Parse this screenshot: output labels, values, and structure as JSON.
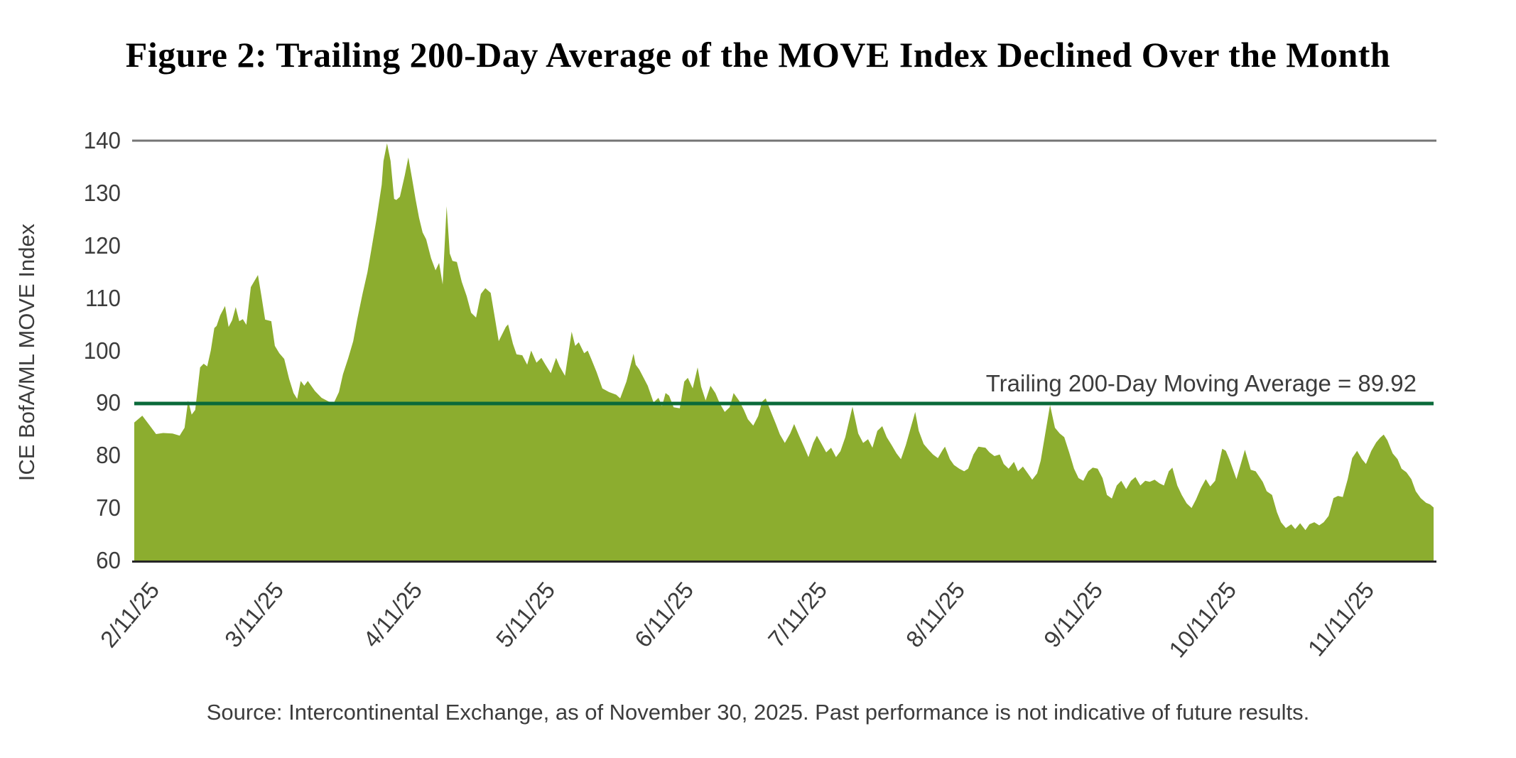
{
  "chart_data": {
    "type": "area",
    "title": "Figure 2: Trailing 200-Day Average of the MOVE Index Declined Over the Month",
    "ylabel": "ICE BofA/ML MOVE Index",
    "xlabel": "",
    "ylim": [
      60,
      140
    ],
    "y_ticks": [
      60,
      70,
      80,
      90,
      100,
      110,
      120,
      130,
      140
    ],
    "grid": "top line at y=140 and bottom axis at y=60 only",
    "legend_position": "none",
    "x_start_date": "2025-02-11",
    "x_end_date": "2025-11-30",
    "total_days": 292,
    "x_tick_labels": [
      "2/11/25",
      "3/11/25",
      "4/11/25",
      "5/11/25",
      "6/11/25",
      "7/11/25",
      "8/11/25",
      "9/11/25",
      "10/11/25",
      "11/11/25"
    ],
    "x_tick_days": [
      0,
      28,
      59,
      89,
      120,
      150,
      181,
      212,
      242,
      273
    ],
    "moving_average": {
      "label": "Trailing 200-Day Moving Average = 89.92",
      "value": 89.92
    },
    "source_note": "Source: Intercontinental Exchange, as of November 30, 2025. Past performance is not indicative of future results.",
    "series": [
      {
        "name": "ICE BofA/ML MOVE Index",
        "points_format": "[days_since_2025-02-11, index_value]",
        "points": [
          [
            0,
            86.3
          ],
          [
            1.8,
            87.6
          ],
          [
            3.4,
            85.8
          ],
          [
            4.9,
            84.1
          ],
          [
            6.5,
            84.3
          ],
          [
            8.6,
            84.2
          ],
          [
            10.2,
            83.8
          ],
          [
            11.3,
            85.3
          ],
          [
            12.1,
            90.5
          ],
          [
            12.9,
            87.8
          ],
          [
            13.7,
            88.7
          ],
          [
            14.8,
            96.8
          ],
          [
            15.6,
            97.5
          ],
          [
            16.4,
            97.0
          ],
          [
            17.2,
            100.0
          ],
          [
            18.0,
            104.3
          ],
          [
            18.5,
            104.7
          ],
          [
            19.3,
            106.7
          ],
          [
            20.4,
            108.5
          ],
          [
            21.2,
            104.5
          ],
          [
            22.0,
            105.8
          ],
          [
            22.8,
            108.3
          ],
          [
            23.6,
            105.6
          ],
          [
            24.4,
            106.0
          ],
          [
            25.2,
            104.9
          ],
          [
            26.2,
            112.1
          ],
          [
            27.8,
            114.4
          ],
          [
            28.6,
            110.3
          ],
          [
            29.4,
            105.9
          ],
          [
            30.8,
            105.6
          ],
          [
            31.6,
            100.9
          ],
          [
            32.6,
            99.5
          ],
          [
            33.7,
            98.4
          ],
          [
            34.8,
            94.6
          ],
          [
            35.8,
            91.9
          ],
          [
            36.6,
            90.8
          ],
          [
            37.4,
            94.2
          ],
          [
            38.2,
            93.3
          ],
          [
            39.0,
            94.2
          ],
          [
            40.6,
            92.3
          ],
          [
            42.1,
            91.0
          ],
          [
            43.7,
            90.3
          ],
          [
            44.9,
            90.1
          ],
          [
            46.0,
            92.1
          ],
          [
            46.9,
            95.5
          ],
          [
            48.1,
            98.6
          ],
          [
            49.2,
            101.8
          ],
          [
            50.1,
            105.9
          ],
          [
            51.3,
            110.8
          ],
          [
            52.4,
            114.9
          ],
          [
            53.3,
            119.4
          ],
          [
            54.4,
            124.8
          ],
          [
            55.6,
            131.6
          ],
          [
            56.0,
            136.1
          ],
          [
            56.8,
            139.5
          ],
          [
            57.6,
            136.1
          ],
          [
            58.4,
            128.9
          ],
          [
            58.9,
            128.7
          ],
          [
            59.7,
            129.3
          ],
          [
            60.8,
            133.4
          ],
          [
            61.6,
            136.8
          ],
          [
            62.4,
            132.9
          ],
          [
            63.2,
            128.9
          ],
          [
            64.0,
            125.3
          ],
          [
            64.8,
            122.5
          ],
          [
            65.6,
            121.2
          ],
          [
            66.7,
            117.6
          ],
          [
            67.7,
            115.3
          ],
          [
            68.5,
            116.7
          ],
          [
            69.3,
            112.6
          ],
          [
            70.2,
            127.5
          ],
          [
            70.9,
            118.5
          ],
          [
            71.5,
            117.1
          ],
          [
            72.5,
            116.9
          ],
          [
            73.6,
            113.1
          ],
          [
            74.7,
            110.4
          ],
          [
            75.7,
            107.2
          ],
          [
            76.8,
            106.3
          ],
          [
            77.9,
            110.8
          ],
          [
            78.9,
            111.9
          ],
          [
            80.1,
            111.0
          ],
          [
            81.1,
            105.9
          ],
          [
            81.9,
            101.8
          ],
          [
            83.5,
            104.5
          ],
          [
            84.0,
            105.0
          ],
          [
            85.1,
            101.3
          ],
          [
            85.9,
            99.3
          ],
          [
            87.2,
            99.1
          ],
          [
            88.3,
            97.3
          ],
          [
            89.2,
            100.0
          ],
          [
            90.4,
            97.7
          ],
          [
            91.5,
            98.6
          ],
          [
            92.4,
            97.3
          ],
          [
            93.6,
            95.7
          ],
          [
            94.8,
            98.6
          ],
          [
            95.6,
            97.0
          ],
          [
            96.8,
            95.2
          ],
          [
            98.3,
            103.6
          ],
          [
            99.1,
            100.9
          ],
          [
            99.9,
            101.6
          ],
          [
            101.1,
            99.5
          ],
          [
            101.9,
            100.0
          ],
          [
            102.7,
            98.4
          ],
          [
            103.9,
            95.9
          ],
          [
            105.2,
            92.8
          ],
          [
            106.7,
            92.1
          ],
          [
            108.3,
            91.6
          ],
          [
            109.2,
            90.9
          ],
          [
            110.6,
            94.1
          ],
          [
            112.2,
            99.4
          ],
          [
            112.7,
            97.3
          ],
          [
            113.5,
            96.4
          ],
          [
            114.6,
            94.6
          ],
          [
            115.4,
            93.3
          ],
          [
            116.7,
            90.1
          ],
          [
            117.8,
            91.0
          ],
          [
            118.6,
            89.4
          ],
          [
            119.4,
            91.9
          ],
          [
            120.2,
            91.4
          ],
          [
            121.2,
            89.2
          ],
          [
            122.6,
            89.0
          ],
          [
            123.6,
            94.1
          ],
          [
            124.4,
            94.8
          ],
          [
            125.5,
            92.8
          ],
          [
            126.6,
            96.8
          ],
          [
            127.4,
            93.1
          ],
          [
            128.4,
            90.5
          ],
          [
            129.5,
            93.3
          ],
          [
            130.6,
            91.9
          ],
          [
            131.6,
            89.9
          ],
          [
            132.7,
            88.3
          ],
          [
            133.8,
            89.2
          ],
          [
            134.7,
            91.9
          ],
          [
            135.9,
            90.5
          ],
          [
            137.0,
            88.7
          ],
          [
            137.9,
            86.9
          ],
          [
            139.1,
            85.7
          ],
          [
            140.2,
            87.5
          ],
          [
            141.1,
            90.3
          ],
          [
            141.9,
            90.9
          ],
          [
            143.1,
            88.3
          ],
          [
            144.2,
            86.0
          ],
          [
            145.1,
            84.0
          ],
          [
            146.2,
            82.4
          ],
          [
            147.4,
            84.2
          ],
          [
            148.3,
            86.0
          ],
          [
            149.4,
            83.8
          ],
          [
            150.6,
            81.5
          ],
          [
            151.5,
            79.7
          ],
          [
            152.6,
            82.4
          ],
          [
            153.4,
            83.8
          ],
          [
            154.6,
            82.0
          ],
          [
            155.5,
            80.6
          ],
          [
            156.6,
            81.5
          ],
          [
            157.7,
            79.7
          ],
          [
            158.7,
            80.8
          ],
          [
            159.8,
            83.5
          ],
          [
            161.4,
            89.3
          ],
          [
            162.7,
            84.2
          ],
          [
            163.8,
            82.4
          ],
          [
            164.9,
            83.1
          ],
          [
            165.9,
            81.5
          ],
          [
            167.0,
            84.7
          ],
          [
            168.1,
            85.6
          ],
          [
            169.1,
            83.5
          ],
          [
            170.2,
            82.0
          ],
          [
            171.3,
            80.4
          ],
          [
            172.3,
            79.3
          ],
          [
            173.4,
            82.0
          ],
          [
            174.5,
            85.3
          ],
          [
            175.5,
            88.3
          ],
          [
            176.3,
            84.7
          ],
          [
            177.4,
            82.2
          ],
          [
            178.5,
            81.1
          ],
          [
            179.5,
            80.2
          ],
          [
            180.6,
            79.5
          ],
          [
            181.7,
            81.1
          ],
          [
            182.2,
            81.7
          ],
          [
            183.3,
            79.3
          ],
          [
            184.2,
            78.2
          ],
          [
            185.4,
            77.5
          ],
          [
            186.5,
            77.0
          ],
          [
            187.4,
            77.5
          ],
          [
            188.6,
            80.2
          ],
          [
            189.7,
            81.7
          ],
          [
            191.3,
            81.5
          ],
          [
            192.2,
            80.6
          ],
          [
            193.3,
            79.9
          ],
          [
            194.5,
            80.2
          ],
          [
            195.4,
            78.4
          ],
          [
            196.5,
            77.5
          ],
          [
            197.7,
            78.8
          ],
          [
            198.6,
            77.0
          ],
          [
            199.7,
            77.9
          ],
          [
            200.8,
            76.6
          ],
          [
            201.8,
            75.4
          ],
          [
            202.9,
            76.6
          ],
          [
            203.7,
            79.0
          ],
          [
            204.5,
            83.0
          ],
          [
            205.8,
            89.6
          ],
          [
            206.9,
            85.3
          ],
          [
            208.0,
            84.2
          ],
          [
            209.0,
            83.5
          ],
          [
            210.1,
            80.6
          ],
          [
            211.2,
            77.5
          ],
          [
            212.2,
            75.7
          ],
          [
            213.3,
            75.2
          ],
          [
            214.4,
            77.0
          ],
          [
            215.4,
            77.7
          ],
          [
            216.5,
            77.5
          ],
          [
            217.6,
            75.7
          ],
          [
            218.6,
            72.5
          ],
          [
            219.7,
            71.8
          ],
          [
            220.8,
            74.3
          ],
          [
            221.8,
            75.2
          ],
          [
            222.9,
            73.6
          ],
          [
            224.0,
            75.2
          ],
          [
            225.0,
            75.9
          ],
          [
            226.1,
            74.3
          ],
          [
            227.2,
            75.2
          ],
          [
            228.2,
            75.0
          ],
          [
            229.3,
            75.4
          ],
          [
            230.4,
            74.7
          ],
          [
            231.4,
            74.3
          ],
          [
            232.5,
            77.0
          ],
          [
            233.3,
            77.7
          ],
          [
            234.4,
            74.3
          ],
          [
            235.4,
            72.5
          ],
          [
            236.5,
            70.9
          ],
          [
            237.6,
            70.0
          ],
          [
            238.6,
            71.6
          ],
          [
            239.7,
            73.8
          ],
          [
            240.8,
            75.5
          ],
          [
            241.8,
            74.1
          ],
          [
            242.9,
            75.2
          ],
          [
            244.5,
            81.3
          ],
          [
            245.3,
            80.9
          ],
          [
            246.1,
            79.3
          ],
          [
            247.7,
            75.5
          ],
          [
            249.6,
            81.1
          ],
          [
            250.9,
            77.3
          ],
          [
            252.0,
            77.0
          ],
          [
            253.6,
            75.0
          ],
          [
            254.5,
            73.2
          ],
          [
            255.7,
            72.5
          ],
          [
            256.8,
            69.2
          ],
          [
            257.7,
            67.3
          ],
          [
            258.8,
            66.2
          ],
          [
            260.0,
            66.9
          ],
          [
            260.9,
            66.0
          ],
          [
            262.0,
            67.1
          ],
          [
            263.2,
            65.8
          ],
          [
            264.1,
            66.9
          ],
          [
            265.2,
            67.3
          ],
          [
            266.3,
            66.7
          ],
          [
            267.3,
            67.3
          ],
          [
            268.4,
            68.5
          ],
          [
            269.5,
            71.9
          ],
          [
            270.5,
            72.3
          ],
          [
            271.6,
            72.1
          ],
          [
            272.7,
            75.5
          ],
          [
            273.7,
            79.5
          ],
          [
            274.8,
            80.9
          ],
          [
            275.9,
            79.3
          ],
          [
            276.8,
            78.4
          ],
          [
            278.0,
            80.9
          ],
          [
            279.1,
            82.5
          ],
          [
            280.0,
            83.4
          ],
          [
            280.8,
            84.0
          ],
          [
            281.6,
            82.9
          ],
          [
            282.8,
            80.4
          ],
          [
            283.9,
            79.3
          ],
          [
            284.8,
            77.5
          ],
          [
            285.9,
            76.8
          ],
          [
            287.0,
            75.5
          ],
          [
            288.0,
            73.2
          ],
          [
            289.1,
            71.9
          ],
          [
            290.3,
            71.0
          ],
          [
            291.2,
            70.7
          ],
          [
            292.0,
            70.1
          ]
        ]
      }
    ],
    "colors": {
      "area_fill": "#8CAD2F",
      "ma_line": "#0A6A3A",
      "top_gridline": "#757575",
      "bottom_axis": "#262626",
      "tick_text": "#3C3C3C",
      "title_text": "#000000"
    }
  }
}
